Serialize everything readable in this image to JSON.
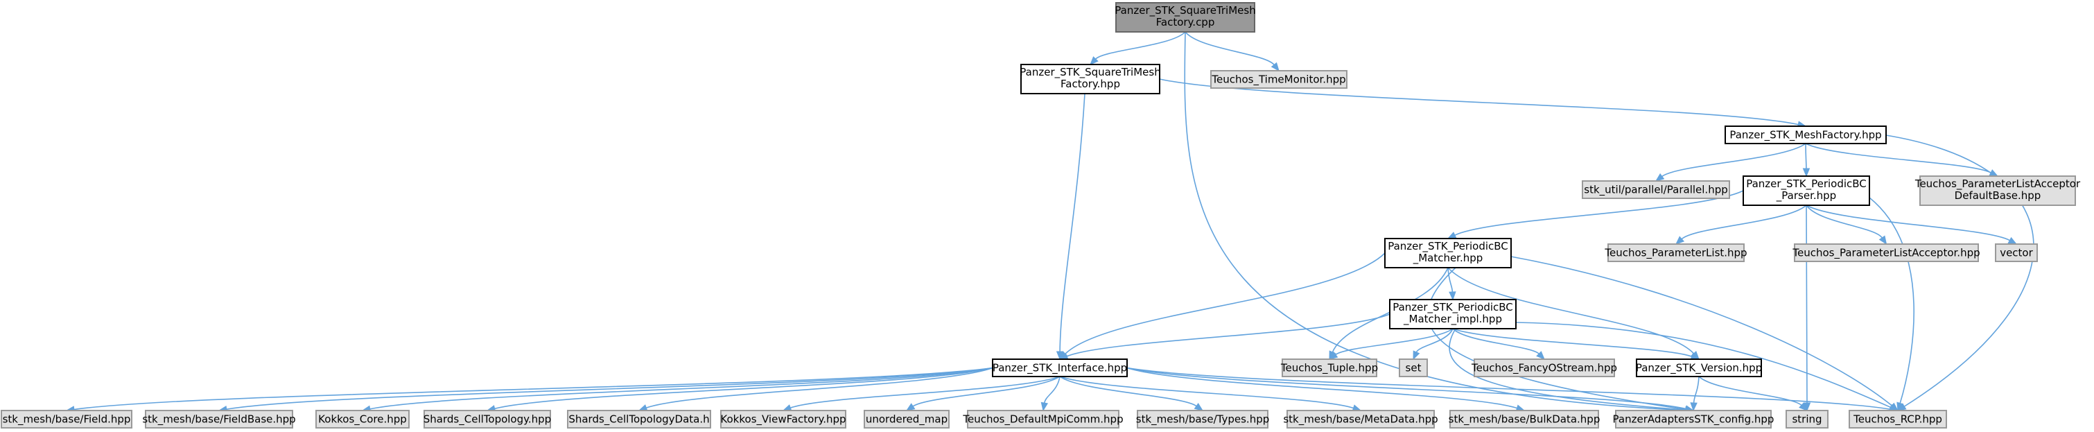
{
  "diagram": {
    "nodes": [
      {
        "id": "n_cpp",
        "lines": [
          "Panzer_STK_SquareTriMesh",
          "Factory.cpp"
        ],
        "style": "focus"
      },
      {
        "id": "n_fhpp",
        "lines": [
          "Panzer_STK_SquareTriMesh",
          "Factory.hpp"
        ],
        "style": "doc"
      },
      {
        "id": "n_timemon",
        "lines": [
          "Teuchos_TimeMonitor.hpp"
        ],
        "style": "ext"
      },
      {
        "id": "n_meshfac",
        "lines": [
          "Panzer_STK_MeshFactory.hpp"
        ],
        "style": "doc"
      },
      {
        "id": "n_parallel",
        "lines": [
          "stk_util/parallel/Parallel.hpp"
        ],
        "style": "ext"
      },
      {
        "id": "n_pbcparser",
        "lines": [
          "Panzer_STK_PeriodicBC",
          "_Parser.hpp"
        ],
        "style": "doc"
      },
      {
        "id": "n_placcdef",
        "lines": [
          "Teuchos_ParameterListAcceptor",
          "DefaultBase.hpp"
        ],
        "style": "ext"
      },
      {
        "id": "n_pbcmatcher",
        "lines": [
          "Panzer_STK_PeriodicBC",
          "_Matcher.hpp"
        ],
        "style": "doc"
      },
      {
        "id": "n_plist",
        "lines": [
          "Teuchos_ParameterList.hpp"
        ],
        "style": "ext"
      },
      {
        "id": "n_placc",
        "lines": [
          "Teuchos_ParameterListAcceptor.hpp"
        ],
        "style": "ext"
      },
      {
        "id": "n_vector",
        "lines": [
          "vector"
        ],
        "style": "ext"
      },
      {
        "id": "n_pbcimpl",
        "lines": [
          "Panzer_STK_PeriodicBC",
          "_Matcher_impl.hpp"
        ],
        "style": "doc"
      },
      {
        "id": "n_iface",
        "lines": [
          "Panzer_STK_Interface.hpp"
        ],
        "style": "doc"
      },
      {
        "id": "n_tuple",
        "lines": [
          "Teuchos_Tuple.hpp"
        ],
        "style": "ext"
      },
      {
        "id": "n_set",
        "lines": [
          "set"
        ],
        "style": "ext"
      },
      {
        "id": "n_fancy",
        "lines": [
          "Teuchos_FancyOStream.hpp"
        ],
        "style": "ext"
      },
      {
        "id": "n_version",
        "lines": [
          "Panzer_STK_Version.hpp"
        ],
        "style": "doc"
      },
      {
        "id": "n_field",
        "lines": [
          "stk_mesh/base/Field.hpp"
        ],
        "style": "ext"
      },
      {
        "id": "n_fieldbase",
        "lines": [
          "stk_mesh/base/FieldBase.hpp"
        ],
        "style": "ext"
      },
      {
        "id": "n_kokkoscore",
        "lines": [
          "Kokkos_Core.hpp"
        ],
        "style": "ext"
      },
      {
        "id": "n_celltopo",
        "lines": [
          "Shards_CellTopology.hpp"
        ],
        "style": "ext"
      },
      {
        "id": "n_celltopodata",
        "lines": [
          "Shards_CellTopologyData.h"
        ],
        "style": "ext"
      },
      {
        "id": "n_viewfac",
        "lines": [
          "Kokkos_ViewFactory.hpp"
        ],
        "style": "ext"
      },
      {
        "id": "n_umap",
        "lines": [
          "unordered_map"
        ],
        "style": "ext"
      },
      {
        "id": "n_mpicomm",
        "lines": [
          "Teuchos_DefaultMpiComm.hpp"
        ],
        "style": "ext"
      },
      {
        "id": "n_types",
        "lines": [
          "stk_mesh/base/Types.hpp"
        ],
        "style": "ext"
      },
      {
        "id": "n_metadata",
        "lines": [
          "stk_mesh/base/MetaData.hpp"
        ],
        "style": "ext"
      },
      {
        "id": "n_bulkdata",
        "lines": [
          "stk_mesh/base/BulkData.hpp"
        ],
        "style": "ext"
      },
      {
        "id": "n_adapters",
        "lines": [
          "PanzerAdaptersSTK_config.hpp"
        ],
        "style": "ext"
      },
      {
        "id": "n_string",
        "lines": [
          "string"
        ],
        "style": "ext"
      },
      {
        "id": "n_rcp",
        "lines": [
          "Teuchos_RCP.hpp"
        ],
        "style": "ext"
      }
    ],
    "edges": [
      [
        "n_cpp",
        "n_fhpp"
      ],
      [
        "n_cpp",
        "n_timemon"
      ],
      [
        "n_cpp",
        "n_adapters"
      ],
      [
        "n_fhpp",
        "n_meshfac"
      ],
      [
        "n_fhpp",
        "n_iface"
      ],
      [
        "n_meshfac",
        "n_parallel"
      ],
      [
        "n_meshfac",
        "n_pbcparser"
      ],
      [
        "n_meshfac",
        "n_placcdef"
      ],
      [
        "n_meshfac",
        "n_rcp"
      ],
      [
        "n_pbcparser",
        "n_pbcmatcher"
      ],
      [
        "n_pbcparser",
        "n_plist"
      ],
      [
        "n_pbcparser",
        "n_placc"
      ],
      [
        "n_pbcparser",
        "n_vector"
      ],
      [
        "n_pbcparser",
        "n_string"
      ],
      [
        "n_pbcparser",
        "n_rcp"
      ],
      [
        "n_pbcmatcher",
        "n_pbcimpl"
      ],
      [
        "n_pbcmatcher",
        "n_iface"
      ],
      [
        "n_pbcmatcher",
        "n_tuple"
      ],
      [
        "n_pbcmatcher",
        "n_version"
      ],
      [
        "n_pbcmatcher",
        "n_adapters"
      ],
      [
        "n_pbcmatcher",
        "n_rcp"
      ],
      [
        "n_pbcimpl",
        "n_iface"
      ],
      [
        "n_pbcimpl",
        "n_tuple"
      ],
      [
        "n_pbcimpl",
        "n_set"
      ],
      [
        "n_pbcimpl",
        "n_fancy"
      ],
      [
        "n_pbcimpl",
        "n_version"
      ],
      [
        "n_pbcimpl",
        "n_adapters"
      ],
      [
        "n_pbcimpl",
        "n_rcp"
      ],
      [
        "n_iface",
        "n_field"
      ],
      [
        "n_iface",
        "n_fieldbase"
      ],
      [
        "n_iface",
        "n_kokkoscore"
      ],
      [
        "n_iface",
        "n_celltopo"
      ],
      [
        "n_iface",
        "n_celltopodata"
      ],
      [
        "n_iface",
        "n_viewfac"
      ],
      [
        "n_iface",
        "n_umap"
      ],
      [
        "n_iface",
        "n_mpicomm"
      ],
      [
        "n_iface",
        "n_types"
      ],
      [
        "n_iface",
        "n_metadata"
      ],
      [
        "n_iface",
        "n_bulkdata"
      ],
      [
        "n_iface",
        "n_adapters"
      ],
      [
        "n_iface",
        "n_rcp"
      ],
      [
        "n_version",
        "n_adapters"
      ],
      [
        "n_version",
        "n_string"
      ]
    ]
  },
  "colors": {
    "focus_fill": "#999999",
    "focus_border": "#666666",
    "doc_fill": "#ffffff",
    "doc_border": "#000000",
    "ext_fill": "#e0e0e0",
    "ext_border": "#999999",
    "edge": "#63a3dd"
  }
}
